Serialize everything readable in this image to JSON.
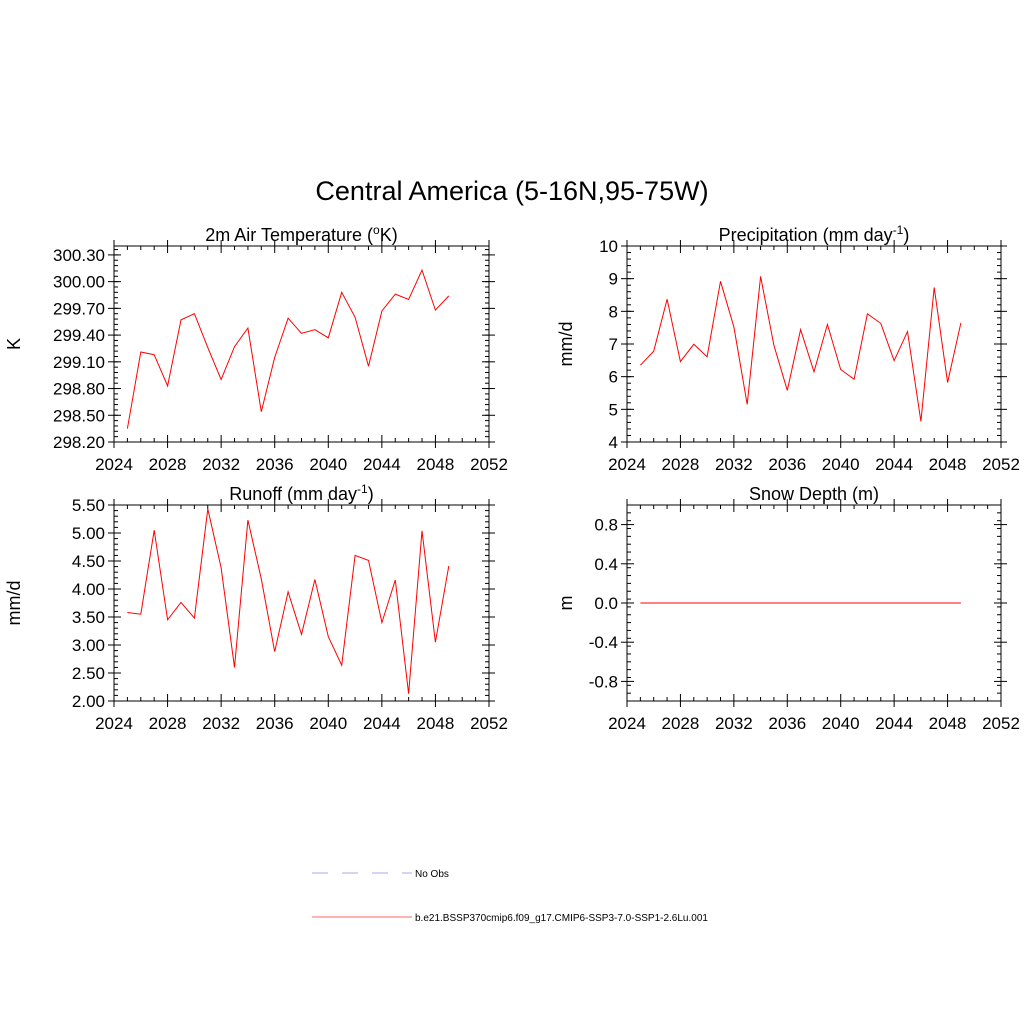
{
  "figure": {
    "title": "Central America (5-16N,95-75W)"
  },
  "chart_data": [
    {
      "type": "line",
      "title": "2m Air Temperature (",
      "title_sup": "o",
      "title_suffix": "K)",
      "ylabel": "K",
      "xlim": [
        2024,
        2052
      ],
      "xticks": [
        2024,
        2028,
        2032,
        2036,
        2040,
        2044,
        2048,
        2052
      ],
      "ylim": [
        298.2,
        300.4
      ],
      "yticks": [
        "298.20",
        "298.50",
        "298.80",
        "299.10",
        "299.40",
        "299.70",
        "300.00",
        "300.30"
      ],
      "x": [
        2025,
        2026,
        2027,
        2028,
        2029,
        2030,
        2031,
        2032,
        2033,
        2034,
        2035,
        2036,
        2037,
        2038,
        2039,
        2040,
        2041,
        2042,
        2043,
        2044,
        2045,
        2046,
        2047,
        2048,
        2049
      ],
      "series": [
        {
          "color": "#ff0000",
          "values": [
            298.35,
            299.21,
            299.18,
            298.83,
            299.57,
            299.64,
            299.26,
            298.9,
            299.27,
            299.48,
            298.54,
            299.15,
            299.59,
            299.42,
            299.46,
            299.37,
            299.88,
            299.6,
            299.05,
            299.67,
            299.86,
            299.8,
            300.13,
            299.68,
            299.84
          ]
        }
      ]
    },
    {
      "type": "line",
      "title": "Precipitation (mm day",
      "title_sup": "-1",
      "title_suffix": ")",
      "ylabel": "mm/d",
      "xlim": [
        2024,
        2052
      ],
      "xticks": [
        2024,
        2028,
        2032,
        2036,
        2040,
        2044,
        2048,
        2052
      ],
      "ylim": [
        4,
        10
      ],
      "yticks": [
        "4",
        "5",
        "6",
        "7",
        "8",
        "9",
        "10"
      ],
      "x": [
        2025,
        2026,
        2027,
        2028,
        2029,
        2030,
        2031,
        2032,
        2033,
        2034,
        2035,
        2036,
        2037,
        2038,
        2039,
        2040,
        2041,
        2042,
        2043,
        2044,
        2045,
        2046,
        2047,
        2048,
        2049
      ],
      "series": [
        {
          "color": "#ff0000",
          "values": [
            6.35,
            6.78,
            8.37,
            6.46,
            6.99,
            6.61,
            8.92,
            7.52,
            5.15,
            9.07,
            6.96,
            5.58,
            7.44,
            6.15,
            7.6,
            6.22,
            5.92,
            7.92,
            7.63,
            6.49,
            7.38,
            4.63,
            8.73,
            5.82,
            7.65
          ]
        }
      ]
    },
    {
      "type": "line",
      "title": "Runoff (mm day",
      "title_sup": "-1",
      "title_suffix": ")",
      "ylabel": "mm/d",
      "xlim": [
        2024,
        2052
      ],
      "xticks": [
        2024,
        2028,
        2032,
        2036,
        2040,
        2044,
        2048,
        2052
      ],
      "ylim": [
        2.0,
        5.5
      ],
      "yticks": [
        "2.00",
        "2.50",
        "3.00",
        "3.50",
        "4.00",
        "4.50",
        "5.00",
        "5.50"
      ],
      "x": [
        2025,
        2026,
        2027,
        2028,
        2029,
        2030,
        2031,
        2032,
        2033,
        2034,
        2035,
        2036,
        2037,
        2038,
        2039,
        2040,
        2041,
        2042,
        2043,
        2044,
        2045,
        2046,
        2047,
        2048,
        2049
      ],
      "series": [
        {
          "color": "#ff0000",
          "values": [
            3.58,
            3.55,
            5.05,
            3.45,
            3.76,
            3.48,
            5.43,
            4.38,
            2.6,
            5.23,
            4.18,
            2.88,
            3.95,
            3.19,
            4.17,
            3.15,
            2.64,
            4.6,
            4.51,
            3.4,
            4.16,
            2.13,
            5.04,
            3.05,
            4.41
          ]
        }
      ]
    },
    {
      "type": "line",
      "title": "Snow Depth (m)",
      "title_sup": "",
      "title_suffix": "",
      "ylabel": "m",
      "xlim": [
        2024,
        2052
      ],
      "xticks": [
        2024,
        2028,
        2032,
        2036,
        2040,
        2044,
        2048,
        2052
      ],
      "ylim": [
        -1.0,
        1.0
      ],
      "yticks": [
        "-0.8",
        "-0.4",
        "0.0",
        "0.4",
        "0.8"
      ],
      "ytick_values": [
        -0.8,
        -0.4,
        0.0,
        0.4,
        0.8
      ],
      "x": [
        2025,
        2049
      ],
      "series": [
        {
          "color": "#ff0000",
          "values": [
            0.0,
            0.0
          ]
        }
      ]
    }
  ],
  "legend": {
    "placement": "bottom-center",
    "items": [
      {
        "label": "No Obs",
        "color": "#aaaaee",
        "style": "dashed"
      },
      {
        "label": "b.e21.BSSP370cmip6.f09_g17.CMIP6-SSP3-7.0-SSP1-2.6Lu.001",
        "color": "#ff6666",
        "style": "solid"
      }
    ]
  }
}
